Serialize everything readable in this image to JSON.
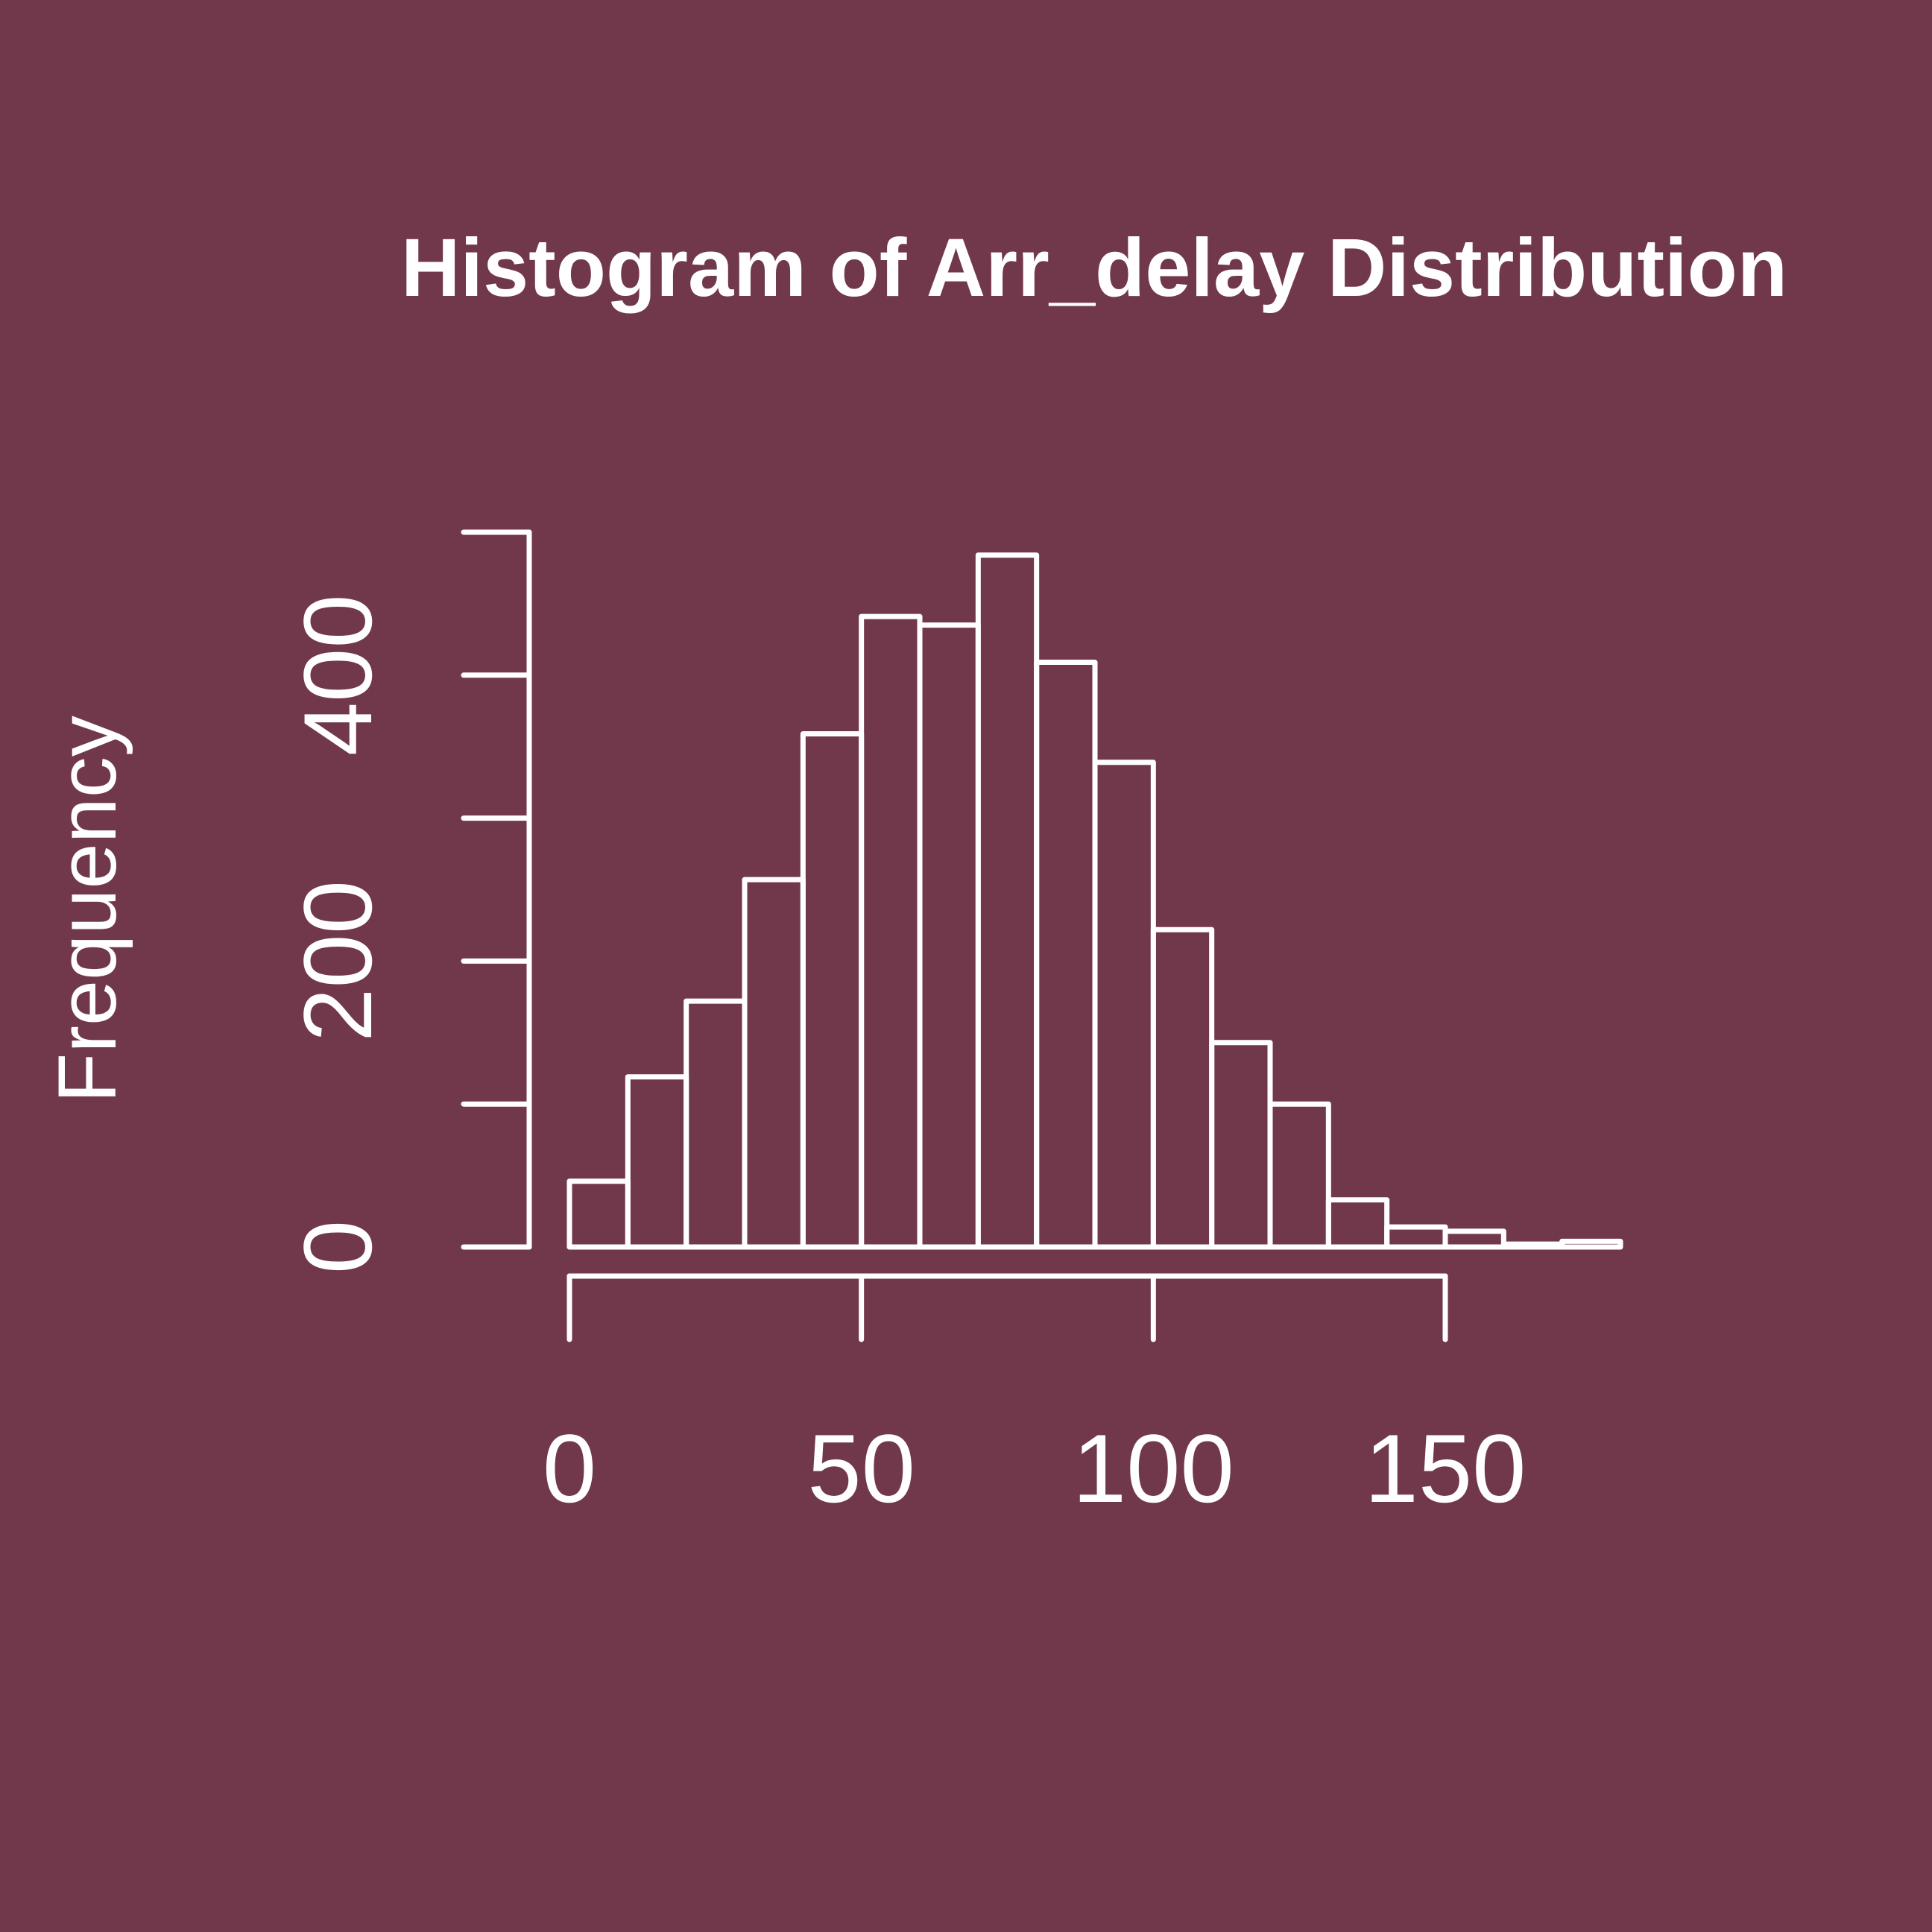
{
  "colors": {
    "background": "#71384c",
    "foreground": "#ffffff"
  },
  "chart_data": {
    "type": "bar",
    "title": "Histogram of Arr_delay Distribution",
    "xlabel": "",
    "ylabel": "Frequency",
    "bin_edges": [
      0,
      10,
      20,
      30,
      40,
      50,
      60,
      70,
      80,
      90,
      100,
      110,
      120,
      130,
      140,
      150,
      160,
      170,
      180
    ],
    "values": [
      46,
      119,
      172,
      257,
      359,
      441,
      435,
      484,
      409,
      339,
      222,
      143,
      100,
      33,
      14,
      11,
      2,
      4
    ],
    "xlim": [
      0,
      180
    ],
    "ylim": [
      0,
      500
    ],
    "x_ticks": [
      0,
      50,
      100,
      150
    ],
    "x_tick_labels": [
      "0",
      "50",
      "100",
      "150"
    ],
    "y_ticks": [
      0,
      100,
      200,
      300,
      400,
      500
    ],
    "y_tick_labels": [
      "0",
      "200",
      "400"
    ],
    "y_labeled_ticks": [
      0,
      200,
      400
    ],
    "grid": false,
    "legend": "none"
  }
}
